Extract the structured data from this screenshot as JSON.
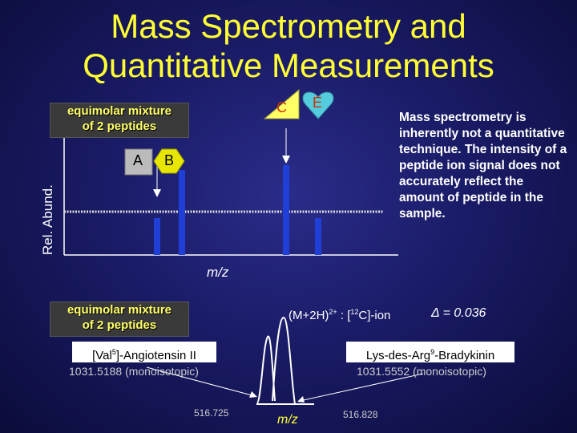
{
  "title_line1": "Mass Spectrometry and",
  "title_line2": "Quantitative Measurements",
  "upper_box_label_line1": "equimolar mixture",
  "upper_box_label_line2": "of 2 peptides",
  "peptide_a": "A",
  "peptide_b": "B",
  "peptide_c": "C",
  "peptide_e": "E",
  "y_axis_label": "Rel. Abund.",
  "x_axis_label": "m/z",
  "note": "Mass spectrometry is inherently not a quantitative technique. The intensity of a peptide ion signal does not accurately reflect the amount of peptide in the sample.",
  "lower_box_label_line1": "equimolar mixture",
  "lower_box_label_line2": "of 2 peptides",
  "ion_prefix": "(M+2H)",
  "ion_charge": "2+",
  "ion_suffix_pre": " : [",
  "ion_isotope": "12",
  "ion_suffix_post": "C]-ion",
  "delta_text": "Δ = 0.036",
  "peptide1_name_pre": "[Val",
  "peptide1_name_sup": "5",
  "peptide1_name_post": "]-Angiotensin II",
  "peptide1_mass": "1031.5188 (monoisotopic)",
  "peptide2_name_pre": "Lys-des-Arg",
  "peptide2_name_sup": "9",
  "peptide2_name_post": "-Bradykinin",
  "peptide2_mass": "1031.5552 (monoisotopic)",
  "tick_left": "516.725",
  "tick_right": "516.828",
  "spectrum_x_label": "m/z",
  "colors": {
    "title": "#ffff33",
    "peak_bar": "#1f3fd6",
    "spectrum_line": "#ffffff",
    "dotted_line": "#dddddd"
  }
}
